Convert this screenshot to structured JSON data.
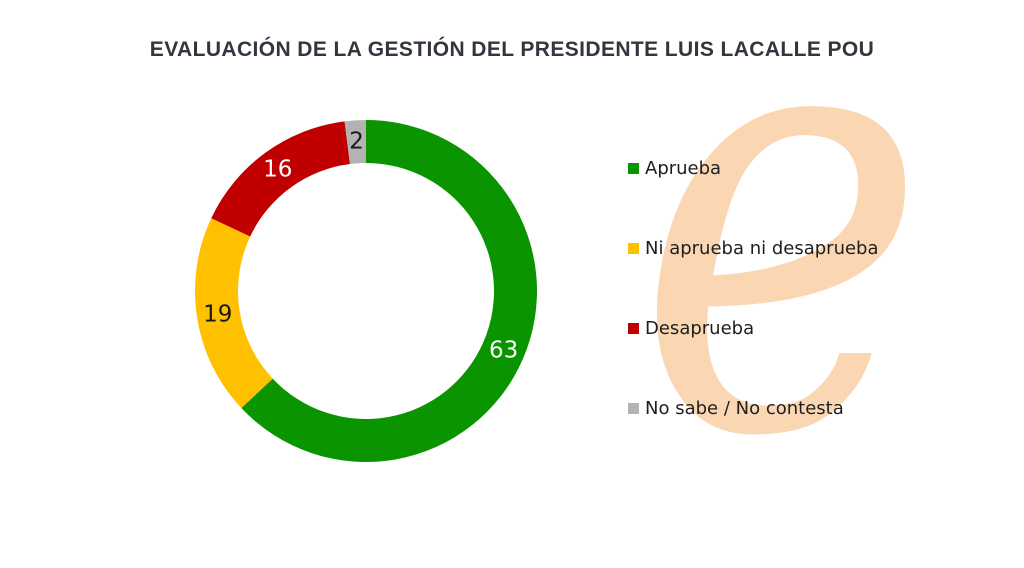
{
  "title": "EVALUACIÓN DE LA GESTIÓN DEL PRESIDENTE LUIS LACALLE POU",
  "watermark": {
    "letter": "e",
    "color": "#fad7b2"
  },
  "chart_data": {
    "type": "pie",
    "variant": "donut",
    "title": "EVALUACIÓN DE LA GESTIÓN DEL PRESIDENTE LUIS LACALLE POU",
    "start_angle_deg": 0,
    "direction": "clockwise",
    "inner_radius_ratio": 0.75,
    "data_labels": true,
    "legend_position": "right",
    "background": "#ffffff",
    "segments": [
      {
        "label": "Aprueba",
        "value": 63,
        "color": "#0a9400",
        "label_color": "#ffffff"
      },
      {
        "label": "Ni aprueba ni desaprueba",
        "value": 19,
        "color": "#ffc000",
        "label_color": "#1a1a1a"
      },
      {
        "label": "Desaprueba",
        "value": 16,
        "color": "#c00000",
        "label_color": "#ffffff"
      },
      {
        "label": "No sabe / No contesta",
        "value": 2,
        "color": "#b3b3b3",
        "label_color": "#1a1a1a"
      }
    ]
  }
}
